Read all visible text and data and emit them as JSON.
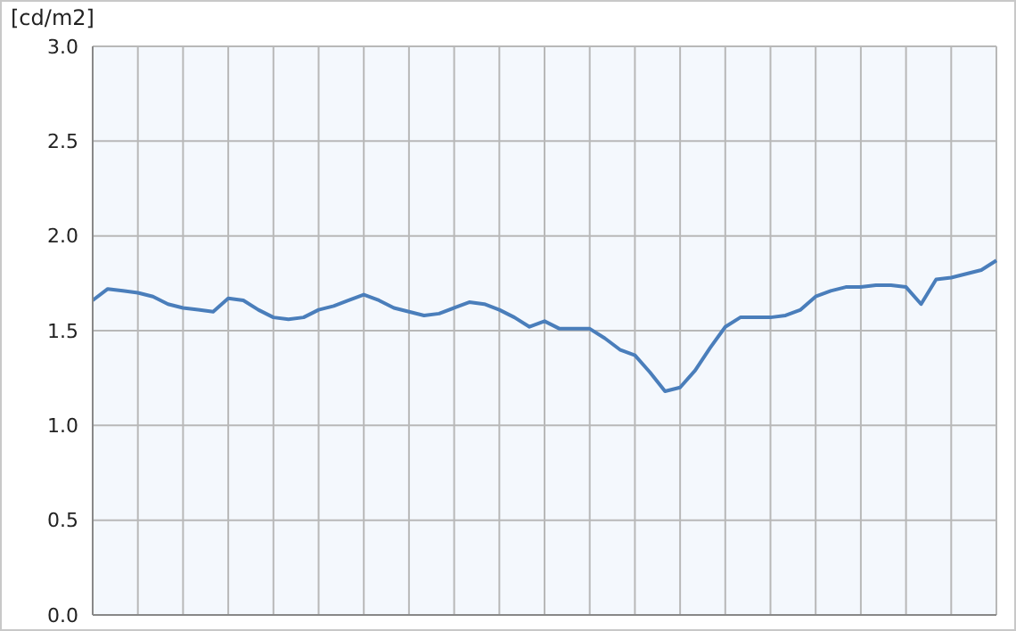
{
  "chart_data": {
    "type": "line",
    "ylabel": "[cd/m2]",
    "categories": [
      null,
      null,
      null,
      null,
      null,
      null,
      null,
      null,
      null,
      null,
      null,
      null,
      null,
      null,
      null,
      null,
      null,
      null,
      null,
      null,
      null,
      null,
      null,
      null,
      null,
      null,
      null,
      null,
      null,
      null,
      null,
      null,
      null,
      null,
      null,
      null,
      null,
      null,
      null,
      null,
      null,
      null,
      null,
      null,
      null,
      null,
      null,
      null,
      null,
      null,
      null,
      null,
      null,
      null,
      null,
      null,
      null,
      null,
      null,
      null,
      null
    ],
    "series": [
      {
        "color": "#4a7ebb",
        "values": [
          1.66,
          1.72,
          1.71,
          1.7,
          1.68,
          1.64,
          1.62,
          1.61,
          1.6,
          1.67,
          1.66,
          1.61,
          1.57,
          1.56,
          1.57,
          1.61,
          1.63,
          1.66,
          1.69,
          1.66,
          1.62,
          1.6,
          1.58,
          1.59,
          1.62,
          1.65,
          1.64,
          1.61,
          1.57,
          1.52,
          1.55,
          1.51,
          1.51,
          1.51,
          1.46,
          1.4,
          1.37,
          1.28,
          1.18,
          1.2,
          1.29,
          1.41,
          1.52,
          1.57,
          1.57,
          1.57,
          1.58,
          1.61,
          1.68,
          1.71,
          1.73,
          1.73,
          1.74,
          1.74,
          1.73,
          1.64,
          1.77,
          1.78,
          1.8,
          1.82,
          1.87
        ]
      }
    ],
    "ylim": [
      0,
      3
    ],
    "yticks": [
      {
        "value": 0,
        "label": "0.0"
      },
      {
        "value": 0.5,
        "label": "0.5"
      },
      {
        "value": 1,
        "label": "1.0"
      },
      {
        "value": 1.5,
        "label": "1.5"
      },
      {
        "value": 2,
        "label": "2.0"
      },
      {
        "value": 2.5,
        "label": "2.5"
      },
      {
        "value": 3,
        "label": "3.0"
      }
    ],
    "grid": true,
    "legend": false,
    "marker": "none",
    "line_style": "solid",
    "tick_labels": "y"
  }
}
